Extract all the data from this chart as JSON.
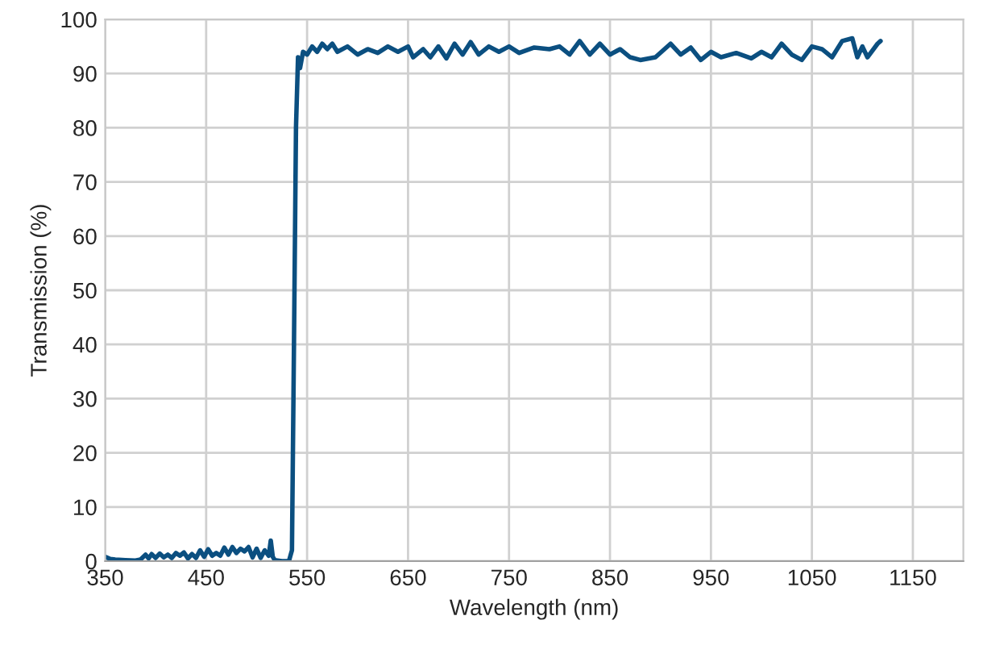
{
  "chart_data": {
    "type": "line",
    "xlabel": "Wavelength (nm)",
    "ylabel": "Transmission (%)",
    "x": [
      350,
      355,
      360,
      370,
      380,
      385,
      390,
      393,
      396,
      400,
      404,
      408,
      412,
      416,
      420,
      424,
      428,
      432,
      436,
      440,
      444,
      448,
      452,
      456,
      460,
      464,
      468,
      472,
      476,
      480,
      484,
      488,
      492,
      496,
      500,
      504,
      508,
      512,
      514,
      516,
      518,
      525,
      532,
      535,
      537,
      539,
      541,
      543,
      546,
      550,
      555,
      560,
      565,
      570,
      575,
      580,
      590,
      600,
      610,
      620,
      630,
      640,
      650,
      655,
      665,
      672,
      680,
      688,
      696,
      704,
      712,
      720,
      730,
      740,
      750,
      760,
      775,
      790,
      800,
      810,
      820,
      830,
      840,
      850,
      860,
      870,
      880,
      895,
      910,
      920,
      930,
      940,
      950,
      960,
      975,
      990,
      1000,
      1010,
      1020,
      1030,
      1040,
      1050,
      1060,
      1070,
      1080,
      1090,
      1095,
      1100,
      1105,
      1115,
      1118
    ],
    "series": [
      {
        "color": "#0b4f80",
        "values": [
          0.8,
          0.4,
          0.3,
          0.2,
          0.1,
          0.3,
          1.2,
          0.5,
          1.3,
          0.6,
          1.4,
          0.7,
          1.2,
          0.6,
          1.5,
          1.0,
          1.6,
          0.5,
          1.3,
          0.6,
          2.0,
          0.8,
          2.2,
          1.0,
          1.5,
          1.0,
          2.5,
          1.2,
          2.6,
          1.5,
          2.3,
          1.8,
          2.6,
          0.7,
          2.3,
          0.6,
          2.0,
          1.0,
          3.8,
          0.8,
          0.2,
          0,
          0,
          2,
          40,
          80,
          93,
          91,
          94,
          93.5,
          95,
          94,
          95.5,
          94.5,
          95.5,
          94,
          95,
          93.5,
          94.5,
          93.8,
          95,
          94,
          95,
          93,
          94.5,
          93,
          95,
          92.8,
          95.5,
          93.5,
          95.8,
          93.5,
          95,
          94,
          95,
          93.8,
          94.8,
          94.5,
          95,
          93.5,
          96,
          93.5,
          95.5,
          93.5,
          94.5,
          93,
          92.5,
          93,
          95.5,
          93.5,
          94.8,
          92.5,
          94,
          93,
          93.8,
          92.8,
          94,
          93,
          95.5,
          93.5,
          92.5,
          95,
          94.5,
          93,
          96,
          96.5,
          93,
          95,
          93,
          95.5,
          96
        ]
      }
    ],
    "xlim": [
      350,
      1200
    ],
    "xticks": [
      350,
      450,
      550,
      650,
      750,
      850,
      950,
      1050,
      1150
    ],
    "ylim": [
      0,
      100
    ],
    "yticks": [
      0,
      10,
      20,
      30,
      40,
      50,
      60,
      70,
      80,
      90,
      100
    ],
    "grid": true,
    "line_style": "solid",
    "marker": "none"
  }
}
